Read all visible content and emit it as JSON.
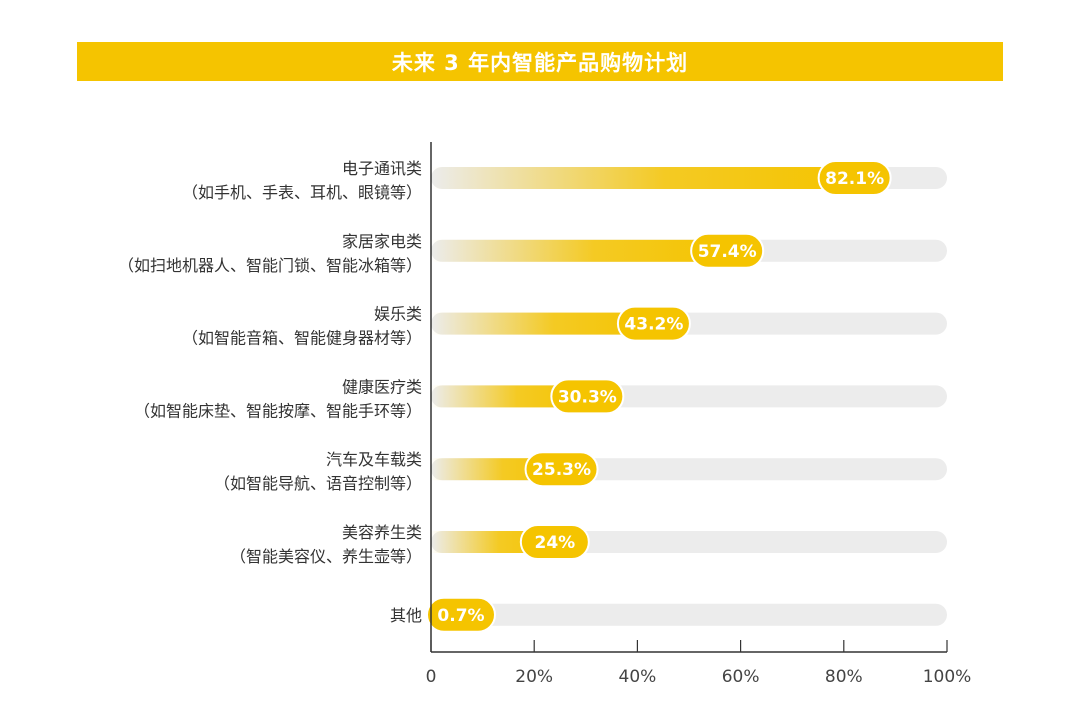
{
  "chart_data": {
    "type": "bar",
    "orientation": "horizontal",
    "title": "未来 3 年内智能产品购物计划",
    "categories": [
      {
        "name": "电子通讯类",
        "desc": "（如手机、手表、耳机、眼镜等）"
      },
      {
        "name": "家居家电类",
        "desc": "（如扫地机器人、智能门锁、智能冰箱等）"
      },
      {
        "name": "娱乐类",
        "desc": "（如智能音箱、智能健身器材等）"
      },
      {
        "name": "健康医疗类",
        "desc": "（如智能床垫、智能按摩、智能手环等）"
      },
      {
        "name": "汽车及车载类",
        "desc": "（如智能导航、语音控制等）"
      },
      {
        "name": "美容养生类",
        "desc": "（智能美容仪、养生壶等）"
      },
      {
        "name": "其他",
        "desc": ""
      }
    ],
    "values": [
      82.1,
      57.4,
      43.2,
      30.3,
      25.3,
      24,
      0.7
    ],
    "value_labels": [
      "82.1%",
      "57.4%",
      "43.2%",
      "30.3%",
      "25.3%",
      "24%",
      "0.7%"
    ],
    "xlim": [
      0,
      100
    ],
    "x_ticks": [
      "0",
      "20%",
      "40%",
      "60%",
      "80%",
      "100%"
    ],
    "x_tick_values": [
      0,
      20,
      40,
      60,
      80,
      100
    ],
    "grid": false,
    "colors": {
      "accent": "#f5c400",
      "track": "#ececec",
      "axis": "#333333"
    }
  }
}
